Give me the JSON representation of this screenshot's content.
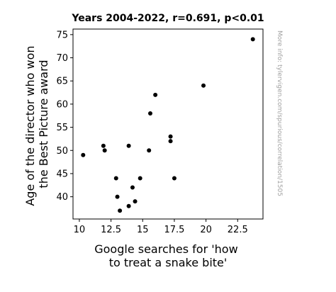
{
  "chart_data": {
    "type": "scatter",
    "title": "Years 2004-2022, r=0.691, p<0.01",
    "xlabel": "Google searches for 'how to treat a snake bite'",
    "ylabel": "Age of the director who won the Best Picture award",
    "xlim": [
      9.5,
      24.5
    ],
    "ylim": [
      35.2,
      76.2
    ],
    "xticks": [
      10,
      12.5,
      15,
      17.5,
      20,
      22.5
    ],
    "xtick_labels": [
      "10",
      "12.5",
      "15",
      "17.5",
      "20",
      "22.5"
    ],
    "yticks": [
      40,
      45,
      50,
      55,
      60,
      65,
      70,
      75
    ],
    "ytick_labels": [
      "40",
      "45",
      "50",
      "55",
      "60",
      "65",
      "70",
      "75"
    ],
    "grid": false,
    "side_note": "More info: tylervigen.com/spurious/correlation/1505",
    "color": "#000000",
    "points": [
      {
        "x": 10.3,
        "y": 49
      },
      {
        "x": 11.9,
        "y": 51
      },
      {
        "x": 12.0,
        "y": 50
      },
      {
        "x": 12.9,
        "y": 44
      },
      {
        "x": 13.0,
        "y": 40
      },
      {
        "x": 13.2,
        "y": 37
      },
      {
        "x": 13.9,
        "y": 38
      },
      {
        "x": 14.2,
        "y": 42
      },
      {
        "x": 14.4,
        "y": 39
      },
      {
        "x": 13.9,
        "y": 51
      },
      {
        "x": 14.8,
        "y": 44
      },
      {
        "x": 15.5,
        "y": 50
      },
      {
        "x": 15.6,
        "y": 58
      },
      {
        "x": 16.0,
        "y": 62
      },
      {
        "x": 17.2,
        "y": 53
      },
      {
        "x": 17.2,
        "y": 52
      },
      {
        "x": 17.5,
        "y": 44
      },
      {
        "x": 19.8,
        "y": 64
      },
      {
        "x": 23.7,
        "y": 74
      }
    ]
  }
}
